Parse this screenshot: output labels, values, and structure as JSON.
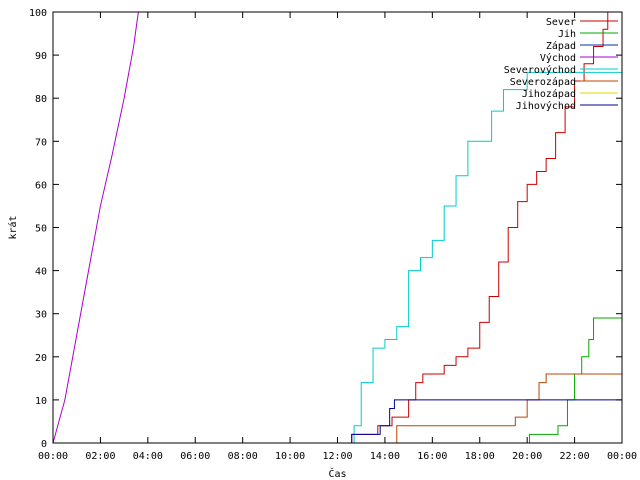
{
  "chart_data": {
    "type": "line",
    "title": "",
    "xlabel": "Čas",
    "ylabel": "krát",
    "xlim": [
      0,
      24
    ],
    "ylim": [
      0,
      100
    ],
    "x_ticks": [
      0,
      2,
      4,
      6,
      8,
      10,
      12,
      14,
      16,
      18,
      20,
      22,
      24
    ],
    "x_tick_labels": [
      "00:00",
      "02:00",
      "04:00",
      "06:00",
      "08:00",
      "10:00",
      "12:00",
      "14:00",
      "16:00",
      "18:00",
      "20:00",
      "22:00",
      "00:00"
    ],
    "y_ticks": [
      0,
      10,
      20,
      30,
      40,
      50,
      60,
      70,
      80,
      90,
      100
    ],
    "y_tick_labels": [
      "0",
      "10",
      "20",
      "30",
      "40",
      "50",
      "60",
      "70",
      "80",
      "90",
      "100"
    ],
    "grid": false,
    "legend_placement": "top-right",
    "series": [
      {
        "name": "Sever",
        "color": "#cc0000",
        "step": true,
        "x": [
          0,
          12.6,
          13.7,
          14.3,
          15.0,
          15.3,
          15.6,
          16.0,
          16.5,
          17.0,
          17.5,
          18.0,
          18.4,
          18.8,
          19.2,
          19.6,
          20.0,
          20.4,
          20.8,
          21.2,
          21.6,
          22.0,
          22.4,
          22.8,
          23.2,
          23.4
        ],
        "y": [
          0,
          2,
          4,
          6,
          10,
          14,
          16,
          16,
          18,
          20,
          22,
          28,
          34,
          42,
          50,
          56,
          60,
          63,
          66,
          72,
          78,
          84,
          88,
          92,
          96,
          100
        ]
      },
      {
        "name": "Jih",
        "color": "#00aa00",
        "step": true,
        "x": [
          0,
          20.1,
          21.3,
          21.7,
          22.0,
          22.3,
          22.6,
          22.8,
          24
        ],
        "y": [
          0,
          2,
          4,
          10,
          16,
          20,
          24,
          29,
          29
        ]
      },
      {
        "name": "Západ",
        "color": "#0033aa",
        "step": true,
        "x": [
          0,
          24
        ],
        "y": [
          0,
          0
        ]
      },
      {
        "name": "Východ",
        "color": "#aa00cc",
        "step": false,
        "x": [
          0,
          0.5,
          1.0,
          1.5,
          2.0,
          2.5,
          3.0,
          3.4,
          3.6
        ],
        "y": [
          0,
          10,
          25,
          40,
          55,
          67,
          80,
          92,
          100
        ]
      },
      {
        "name": "Severovýchod",
        "color": "#00cccc",
        "step": true,
        "x": [
          0,
          12.7,
          13.0,
          13.5,
          14.0,
          14.5,
          15.0,
          15.5,
          16.0,
          16.5,
          17.0,
          17.5,
          18.0,
          18.5,
          19.0,
          19.5,
          20.0,
          24
        ],
        "y": [
          0,
          4,
          14,
          22,
          24,
          27,
          40,
          43,
          47,
          55,
          62,
          70,
          70,
          77,
          82,
          82,
          86,
          86
        ]
      },
      {
        "name": "Severozápad",
        "color": "#bb4400",
        "step": true,
        "x": [
          0,
          14.5,
          15.0,
          19.5,
          20.0,
          20.5,
          20.8,
          24
        ],
        "y": [
          0,
          4,
          4,
          6,
          10,
          14,
          16,
          16
        ]
      },
      {
        "name": "Jihozápad",
        "color": "#dddd00",
        "step": true,
        "x": [
          0,
          24
        ],
        "y": [
          0,
          0
        ]
      },
      {
        "name": "Jihovýchod",
        "color": "#000099",
        "step": true,
        "x": [
          0,
          12.6,
          13.6,
          13.8,
          14.2,
          14.4,
          24
        ],
        "y": [
          0,
          2,
          2,
          4,
          8,
          10,
          10
        ]
      }
    ]
  }
}
